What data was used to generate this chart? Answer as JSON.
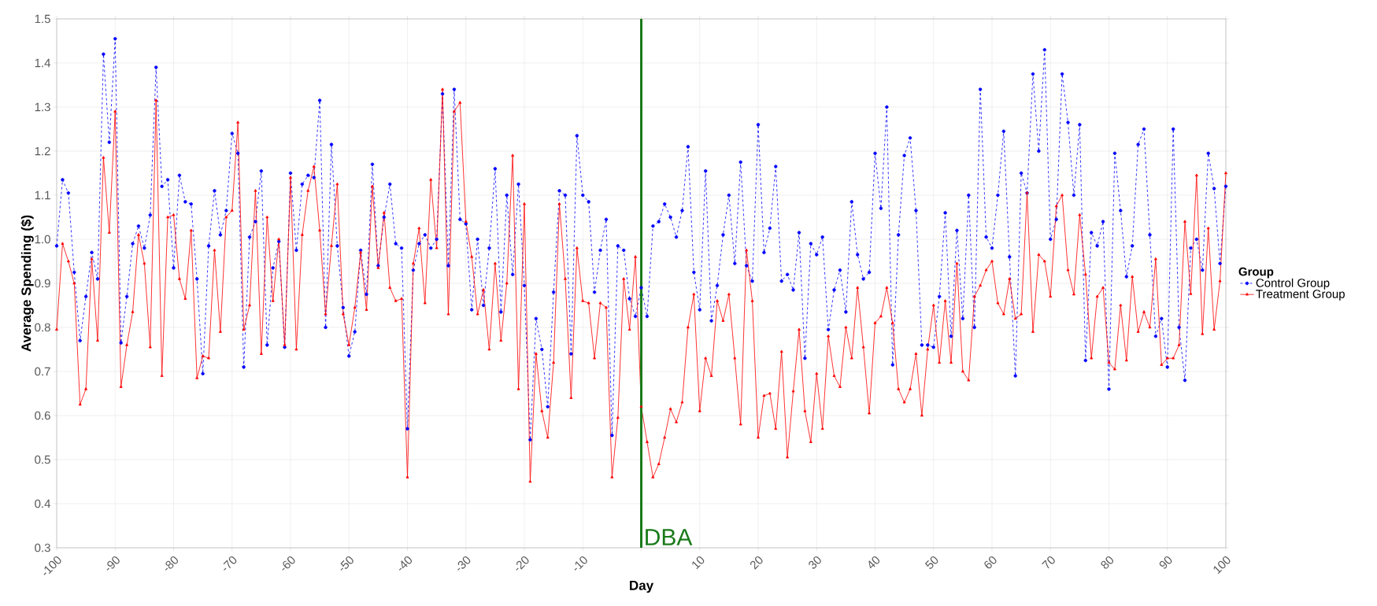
{
  "chart_data": {
    "type": "line",
    "xlabel": "Day",
    "ylabel": "Average Spending ($)",
    "legend_title": "Group",
    "legend": "right",
    "grid": true,
    "x": [
      -100,
      -99,
      -98,
      -97,
      -96,
      -95,
      -94,
      -93,
      -92,
      -91,
      -90,
      -89,
      -88,
      -87,
      -86,
      -85,
      -84,
      -83,
      -82,
      -81,
      -80,
      -79,
      -78,
      -77,
      -76,
      -75,
      -74,
      -73,
      -72,
      -71,
      -70,
      -69,
      -68,
      -67,
      -66,
      -65,
      -64,
      -63,
      -62,
      -61,
      -60,
      -59,
      -58,
      -57,
      -56,
      -55,
      -54,
      -53,
      -52,
      -51,
      -50,
      -49,
      -48,
      -47,
      -46,
      -45,
      -44,
      -43,
      -42,
      -41,
      -40,
      -39,
      -38,
      -37,
      -36,
      -35,
      -34,
      -33,
      -32,
      -31,
      -30,
      -29,
      -28,
      -27,
      -26,
      -25,
      -24,
      -23,
      -22,
      -21,
      -20,
      -19,
      -18,
      -17,
      -16,
      -15,
      -14,
      -13,
      -12,
      -11,
      -10,
      -9,
      -8,
      -7,
      -6,
      -5,
      -4,
      -3,
      -2,
      -1,
      0,
      1,
      2,
      3,
      4,
      5,
      6,
      7,
      8,
      9,
      10,
      11,
      12,
      13,
      14,
      15,
      16,
      17,
      18,
      19,
      20,
      21,
      22,
      23,
      24,
      25,
      26,
      27,
      28,
      29,
      30,
      31,
      32,
      33,
      34,
      35,
      36,
      37,
      38,
      39,
      40,
      41,
      42,
      43,
      44,
      45,
      46,
      47,
      48,
      49,
      50,
      51,
      52,
      53,
      54,
      55,
      56,
      57,
      58,
      59,
      60,
      61,
      62,
      63,
      64,
      65,
      66,
      67,
      68,
      69,
      70,
      71,
      72,
      73,
      74,
      75,
      76,
      77,
      78,
      79,
      80,
      81,
      82,
      83,
      84,
      85,
      86,
      87,
      88,
      89,
      90,
      91,
      92,
      93,
      94,
      95,
      96,
      97,
      98,
      99,
      100
    ],
    "series": [
      {
        "name": "Control Group",
        "color": "#0000ff",
        "line_style": "dashed",
        "marker": "circle",
        "values": [
          0.985,
          1.135,
          1.105,
          0.925,
          0.77,
          0.87,
          0.97,
          0.91,
          1.42,
          1.22,
          1.455,
          0.765,
          0.87,
          0.99,
          1.03,
          0.98,
          1.055,
          1.39,
          1.12,
          1.135,
          0.935,
          1.145,
          1.085,
          1.08,
          0.91,
          0.695,
          0.985,
          1.11,
          1.01,
          1.065,
          1.24,
          1.195,
          0.71,
          1.005,
          1.04,
          1.155,
          0.76,
          0.935,
          0.995,
          0.755,
          1.15,
          0.975,
          1.125,
          1.145,
          1.14,
          1.315,
          0.8,
          1.215,
          0.985,
          0.845,
          0.735,
          0.79,
          0.975,
          0.875,
          1.17,
          0.94,
          1.05,
          1.125,
          0.99,
          0.98,
          0.57,
          0.93,
          0.99,
          1.01,
          0.98,
          1.0,
          1.33,
          0.94,
          1.34,
          1.045,
          1.035,
          0.84,
          1.0,
          0.85,
          0.98,
          1.16,
          0.835,
          1.1,
          0.92,
          1.125,
          0.895,
          0.545,
          0.82,
          0.75,
          0.62,
          0.88,
          1.11,
          1.1,
          0.74,
          1.235,
          1.1,
          1.085,
          0.88,
          0.975,
          1.045,
          0.555,
          0.985,
          0.975,
          0.865,
          0.825,
          0.89,
          0.825,
          1.03,
          1.04,
          1.08,
          1.05,
          1.005,
          1.065,
          1.21,
          0.925,
          0.84,
          1.155,
          0.815,
          0.895,
          1.01,
          1.1,
          0.945,
          1.175,
          0.94,
          0.905,
          1.26,
          0.97,
          1.025,
          1.165,
          0.905,
          0.92,
          0.885,
          1.015,
          0.73,
          0.99,
          0.965,
          1.005,
          0.795,
          0.885,
          0.93,
          0.835,
          1.085,
          0.965,
          0.91,
          0.925,
          1.195,
          1.07,
          1.3,
          0.715,
          1.01,
          1.19,
          1.23,
          1.065,
          0.76,
          0.76,
          0.755,
          0.87,
          1.06,
          0.78,
          1.02,
          0.82,
          1.1,
          0.8,
          1.34,
          1.005,
          0.98,
          1.1,
          1.245,
          0.96,
          0.69,
          1.15,
          1.105,
          1.375,
          1.2,
          1.43,
          1.0,
          1.045,
          1.375,
          1.265,
          1.1,
          1.26,
          0.725,
          1.015,
          0.985,
          1.04,
          0.66,
          1.195,
          1.065,
          0.915,
          0.985,
          1.215,
          1.25,
          1.01,
          0.78,
          0.82,
          0.71,
          1.25,
          0.8,
          0.68,
          0.98,
          1.0,
          0.93,
          1.195,
          1.115,
          0.945,
          1.12
        ]
      },
      {
        "name": "Treatment Group",
        "color": "#ff0000",
        "line_style": "solid",
        "marker": "triangle",
        "values": [
          0.795,
          0.99,
          0.95,
          0.9,
          0.625,
          0.66,
          0.955,
          0.77,
          1.185,
          1.015,
          1.29,
          0.665,
          0.76,
          0.835,
          1.01,
          0.945,
          0.755,
          1.315,
          0.69,
          1.05,
          1.055,
          0.91,
          0.865,
          1.02,
          0.685,
          0.735,
          0.73,
          0.975,
          0.79,
          1.05,
          1.065,
          1.265,
          0.795,
          0.85,
          1.11,
          0.74,
          1.05,
          0.86,
          1.0,
          0.76,
          1.14,
          0.75,
          1.01,
          1.11,
          1.165,
          1.02,
          0.83,
          0.985,
          1.125,
          0.83,
          0.76,
          0.845,
          0.97,
          0.84,
          1.12,
          0.935,
          1.06,
          0.89,
          0.86,
          0.865,
          0.46,
          0.945,
          1.025,
          0.855,
          1.135,
          0.98,
          1.34,
          0.83,
          1.29,
          1.31,
          1.04,
          0.96,
          0.83,
          0.885,
          0.75,
          0.945,
          0.77,
          0.9,
          1.19,
          0.66,
          1.08,
          0.45,
          0.74,
          0.61,
          0.55,
          0.72,
          1.08,
          0.91,
          0.64,
          0.98,
          0.86,
          0.855,
          0.73,
          0.855,
          0.845,
          0.46,
          0.595,
          0.91,
          0.795,
          0.96,
          0.62,
          0.54,
          0.46,
          0.49,
          0.55,
          0.615,
          0.585,
          0.63,
          0.8,
          0.875,
          0.61,
          0.73,
          0.69,
          0.86,
          0.815,
          0.875,
          0.73,
          0.58,
          0.975,
          0.86,
          0.55,
          0.645,
          0.65,
          0.57,
          0.745,
          0.505,
          0.655,
          0.795,
          0.61,
          0.54,
          0.695,
          0.57,
          0.78,
          0.69,
          0.665,
          0.8,
          0.73,
          0.89,
          0.755,
          0.605,
          0.81,
          0.825,
          0.89,
          0.81,
          0.66,
          0.63,
          0.66,
          0.74,
          0.6,
          0.75,
          0.85,
          0.72,
          0.86,
          0.72,
          0.945,
          0.7,
          0.68,
          0.87,
          0.895,
          0.93,
          0.95,
          0.855,
          0.83,
          0.91,
          0.82,
          0.83,
          1.105,
          0.79,
          0.965,
          0.95,
          0.87,
          1.075,
          1.1,
          0.93,
          0.875,
          1.055,
          0.92,
          0.73,
          0.87,
          0.89,
          0.72,
          0.705,
          0.85,
          0.725,
          0.915,
          0.79,
          0.835,
          0.8,
          0.955,
          0.715,
          0.73,
          0.73,
          0.76,
          1.04,
          0.876,
          1.145,
          0.785,
          1.025,
          0.795,
          0.905,
          1.15
        ]
      }
    ],
    "xlim": [
      -100,
      100
    ],
    "ylim": [
      0.3,
      1.5
    ],
    "xticks": [
      -100,
      -90,
      -80,
      -70,
      -60,
      -50,
      -40,
      -30,
      -20,
      -10,
      {
        "value": 0,
        "label": null
      },
      10,
      20,
      30,
      40,
      50,
      60,
      70,
      80,
      90,
      100
    ],
    "yticks": [
      0.3,
      0.4,
      0.5,
      0.6,
      0.7,
      0.8,
      0.9,
      {
        "value": 1,
        "label": "1.0"
      },
      1.1,
      1.2,
      1.3,
      1.4,
      1.5
    ],
    "ref_lines": [
      {
        "axis": "x",
        "value": 0,
        "label": "DBA",
        "color": "#1a7a1a"
      }
    ]
  }
}
